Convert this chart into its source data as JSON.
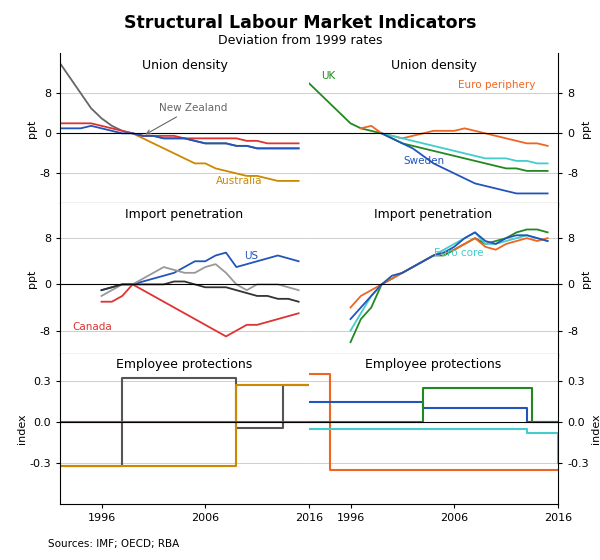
{
  "title": "Structural Labour Market Indicators",
  "subtitle": "Deviation from 1999 rates",
  "source": "Sources: IMF; OECD; RBA",
  "years_main": [
    1992,
    1993,
    1994,
    1995,
    1996,
    1997,
    1998,
    1999,
    2000,
    2001,
    2002,
    2003,
    2004,
    2005,
    2006,
    2007,
    2008,
    2009,
    2010,
    2011,
    2012,
    2013,
    2014,
    2015,
    2016
  ],
  "ud_left": {
    "NZ": [
      14,
      11,
      8,
      5,
      3,
      1.5,
      0.5,
      0,
      -0.5,
      -0.5,
      -1,
      -1,
      -1,
      -1.5,
      -2,
      -2,
      -2,
      -2.5,
      -2.5,
      -3,
      -3,
      -3,
      -3,
      -3,
      null
    ],
    "AU": [
      null,
      null,
      null,
      null,
      null,
      null,
      null,
      0,
      -1,
      -2,
      -3,
      -4,
      -5,
      -6,
      -6,
      -7,
      -7.5,
      -8,
      -8.5,
      -8.5,
      -9,
      -9.5,
      -9.5,
      -9.5,
      null
    ],
    "red": [
      2,
      2,
      2,
      2,
      1.5,
      1,
      0.5,
      0,
      -0.5,
      -0.5,
      -0.5,
      -0.5,
      -1,
      -1,
      -1,
      -1,
      -1,
      -1,
      -1.5,
      -1.5,
      -2,
      -2,
      -2,
      -2,
      null
    ],
    "blue": [
      1,
      1,
      1,
      1.5,
      1,
      0.5,
      0,
      0,
      -0.5,
      -0.5,
      -1,
      -1,
      -1,
      -1.5,
      -2,
      -2,
      -2,
      -2.5,
      -2.5,
      -3,
      -3,
      -3,
      -3,
      -3,
      null
    ]
  },
  "ud_left_colors": {
    "NZ": "#666666",
    "AU": "#CC8800",
    "red": "#DD3333",
    "blue": "#2255BB"
  },
  "ud_right": {
    "UK": [
      10,
      8,
      6,
      4,
      2,
      1,
      0.5,
      0,
      -1,
      -2,
      -2.5,
      -3,
      -3.5,
      -4,
      -4.5,
      -5,
      -5.5,
      -6,
      -6.5,
      -7,
      -7,
      -7.5,
      -7.5,
      -7.5,
      null
    ],
    "EP": [
      null,
      null,
      null,
      null,
      null,
      1,
      1.5,
      0,
      -0.5,
      -1,
      -0.5,
      0,
      0.5,
      0.5,
      0.5,
      1,
      0.5,
      0,
      -0.5,
      -1,
      -1.5,
      -2,
      -2,
      -2.5,
      null
    ],
    "cyan": [
      null,
      null,
      null,
      null,
      null,
      null,
      null,
      0,
      -0.5,
      -1,
      -1.5,
      -2,
      -2.5,
      -3,
      -3.5,
      -4,
      -4.5,
      -5,
      -5,
      -5,
      -5.5,
      -5.5,
      -6,
      -6,
      null
    ],
    "SW": [
      null,
      null,
      null,
      null,
      null,
      null,
      null,
      0,
      -1,
      -2,
      -3,
      -4.5,
      -6,
      -7,
      -8,
      -9,
      -10,
      -10.5,
      -11,
      -11.5,
      -12,
      -12,
      -12,
      -12,
      null
    ]
  },
  "ud_right_colors": {
    "UK": "#228822",
    "EP": "#EE6622",
    "cyan": "#44CCCC",
    "SW": "#2255BB"
  },
  "ip_left": {
    "CA": [
      null,
      null,
      null,
      null,
      -3,
      -3,
      -2,
      0,
      -1,
      -2,
      -3,
      -4,
      -5,
      -6,
      -7,
      -8,
      -9,
      -8,
      -7,
      -7,
      -6.5,
      -6,
      -5.5,
      -5,
      null
    ],
    "US": [
      null,
      null,
      null,
      null,
      -1,
      -0.5,
      0,
      0,
      0.5,
      1,
      1.5,
      2,
      3,
      4,
      4,
      5,
      5.5,
      3,
      3.5,
      4,
      4.5,
      5,
      4.5,
      4,
      null
    ],
    "gray": [
      null,
      null,
      null,
      null,
      -2,
      -1,
      0,
      0,
      1,
      2,
      3,
      2.5,
      2,
      2,
      3,
      3.5,
      2,
      0,
      -1,
      0,
      0,
      0,
      -0.5,
      -1,
      null
    ],
    "blk": [
      null,
      null,
      null,
      null,
      -1,
      -0.5,
      0,
      0,
      0,
      0,
      0,
      0.5,
      0.5,
      0,
      -0.5,
      -0.5,
      -0.5,
      -1,
      -1.5,
      -2,
      -2,
      -2.5,
      -2.5,
      -3,
      null
    ]
  },
  "ip_left_colors": {
    "CA": "#DD3333",
    "US": "#2255BB",
    "gray": "#999999",
    "blk": "#333333"
  },
  "ip_right": {
    "green": [
      null,
      null,
      null,
      null,
      -10,
      -6,
      -4,
      0,
      1,
      2,
      3,
      4,
      5,
      5,
      6,
      7,
      8,
      7,
      7.5,
      8,
      9,
      9.5,
      9.5,
      9,
      null
    ],
    "EC": [
      null,
      null,
      null,
      null,
      -8,
      -5,
      -2,
      0,
      1,
      2,
      3,
      4,
      5,
      6,
      7,
      8,
      9,
      7,
      7,
      7.5,
      8,
      8.5,
      8,
      7.5,
      null
    ],
    "orange": [
      null,
      null,
      null,
      null,
      -4,
      -2,
      -1,
      0,
      1,
      2,
      3,
      4,
      5,
      5.5,
      6,
      7,
      8,
      6.5,
      6,
      7,
      7.5,
      8,
      7.5,
      8,
      null
    ],
    "blue2": [
      null,
      null,
      null,
      null,
      -6,
      -4,
      -2,
      0,
      1.5,
      2,
      3,
      4,
      5,
      5.5,
      6.5,
      8,
      9,
      7.5,
      7,
      8,
      8.5,
      8.5,
      8,
      7.5,
      null
    ]
  },
  "ip_right_colors": {
    "green": "#228822",
    "EC": "#44CCCC",
    "orange": "#EE6622",
    "blue2": "#2255BB"
  },
  "ep_left": {
    "years": [
      1992,
      1994,
      1998,
      2003,
      2008,
      2009,
      2013,
      2013.5,
      2016
    ],
    "gray": [
      -0.32,
      -0.32,
      0.32,
      0.32,
      0.32,
      -0.04,
      -0.04,
      0.27,
      0.27
    ],
    "gold": [
      -0.32,
      -0.32,
      -0.32,
      -0.32,
      -0.32,
      0.27,
      0.27,
      0.27,
      0.27
    ],
    "red": [
      0,
      0,
      0,
      0,
      0,
      0,
      0,
      0,
      0
    ]
  },
  "ep_left_colors": {
    "gray": "#555555",
    "gold": "#CC8800",
    "red": "#DD3333"
  },
  "ep_right": {
    "years": [
      1992,
      1993,
      1994,
      2001,
      2003,
      2013,
      2013.5,
      2016
    ],
    "orange": [
      0.35,
      0.35,
      -0.35,
      -0.35,
      -0.35,
      -0.35,
      -0.35,
      -0.35
    ],
    "blue3": [
      0.15,
      0.15,
      0.15,
      0.15,
      0.1,
      0.0,
      0.0,
      0.0
    ],
    "green2": [
      0.0,
      0.0,
      0.0,
      0.0,
      0.25,
      0.25,
      0.0,
      0.0
    ],
    "cyan2": [
      -0.05,
      -0.05,
      -0.05,
      -0.05,
      -0.05,
      -0.08,
      -0.08,
      -0.3
    ]
  },
  "ep_right_colors": {
    "orange": "#EE6622",
    "blue3": "#2255BB",
    "green2": "#228822",
    "cyan2": "#44CCCC"
  }
}
